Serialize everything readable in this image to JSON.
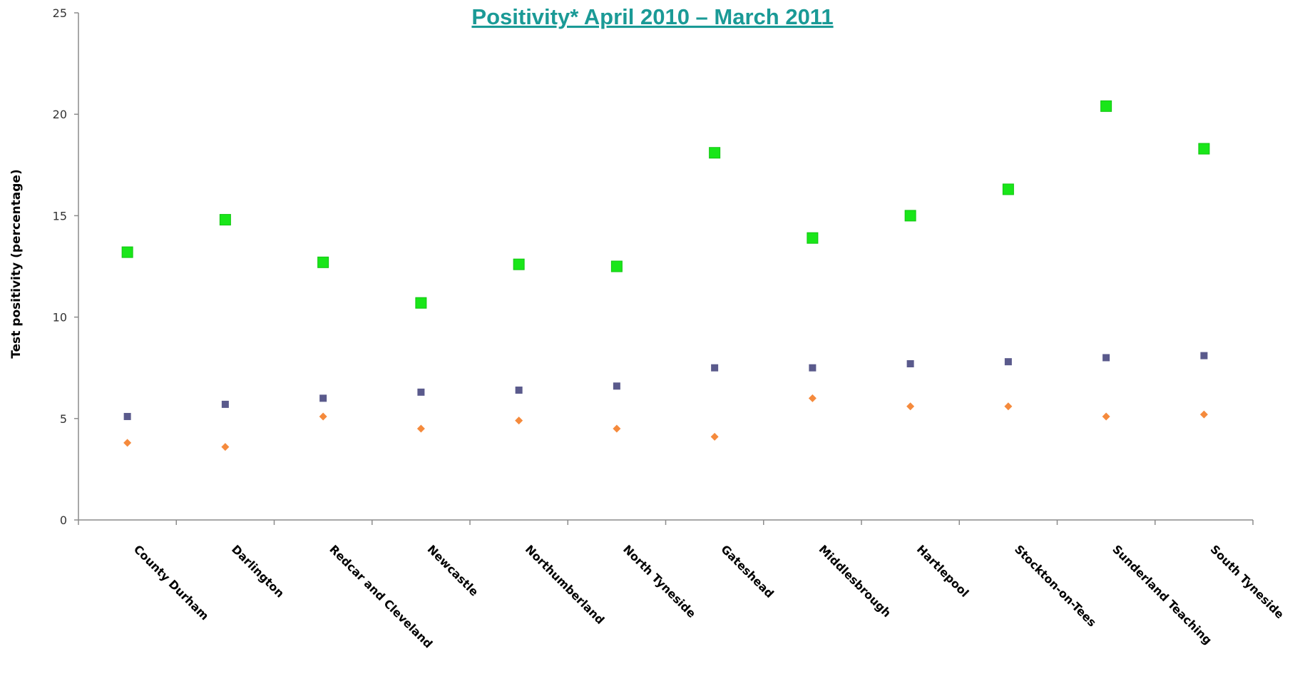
{
  "chart_data": {
    "type": "scatter",
    "title": "Positivity*  April 2010 – March 2011",
    "xlabel": "",
    "ylabel": "Test positivity (percentage)",
    "ylim": [
      0,
      25
    ],
    "yticks": [
      0,
      5,
      10,
      15,
      20,
      25
    ],
    "grid": false,
    "legend": "none",
    "categories": [
      "County Durham",
      "Darlington",
      "Redcar and Cleveland",
      "Newcastle",
      "Northumberland",
      "North Tyneside",
      "Gateshead",
      "Middlesbrough",
      "Hartlepool",
      "Stockton-on-Tees",
      "Sunderland Teaching",
      "South Tyneside"
    ],
    "series": [
      {
        "color": "#19e619",
        "marker": "square-large",
        "values": [
          13.2,
          14.8,
          12.7,
          10.7,
          12.6,
          12.5,
          18.1,
          13.9,
          15.0,
          16.3,
          20.4,
          18.3
        ]
      },
      {
        "color": "#5a5a8c",
        "marker": "square-small",
        "values": [
          5.1,
          5.7,
          6.0,
          6.3,
          6.4,
          6.6,
          7.5,
          7.5,
          7.7,
          7.8,
          8.0,
          8.1
        ]
      },
      {
        "color": "#f58a3c",
        "marker": "diamond",
        "values": [
          3.8,
          3.6,
          5.1,
          4.5,
          4.9,
          4.5,
          4.1,
          6.0,
          5.6,
          5.6,
          5.1,
          5.2
        ]
      }
    ]
  }
}
